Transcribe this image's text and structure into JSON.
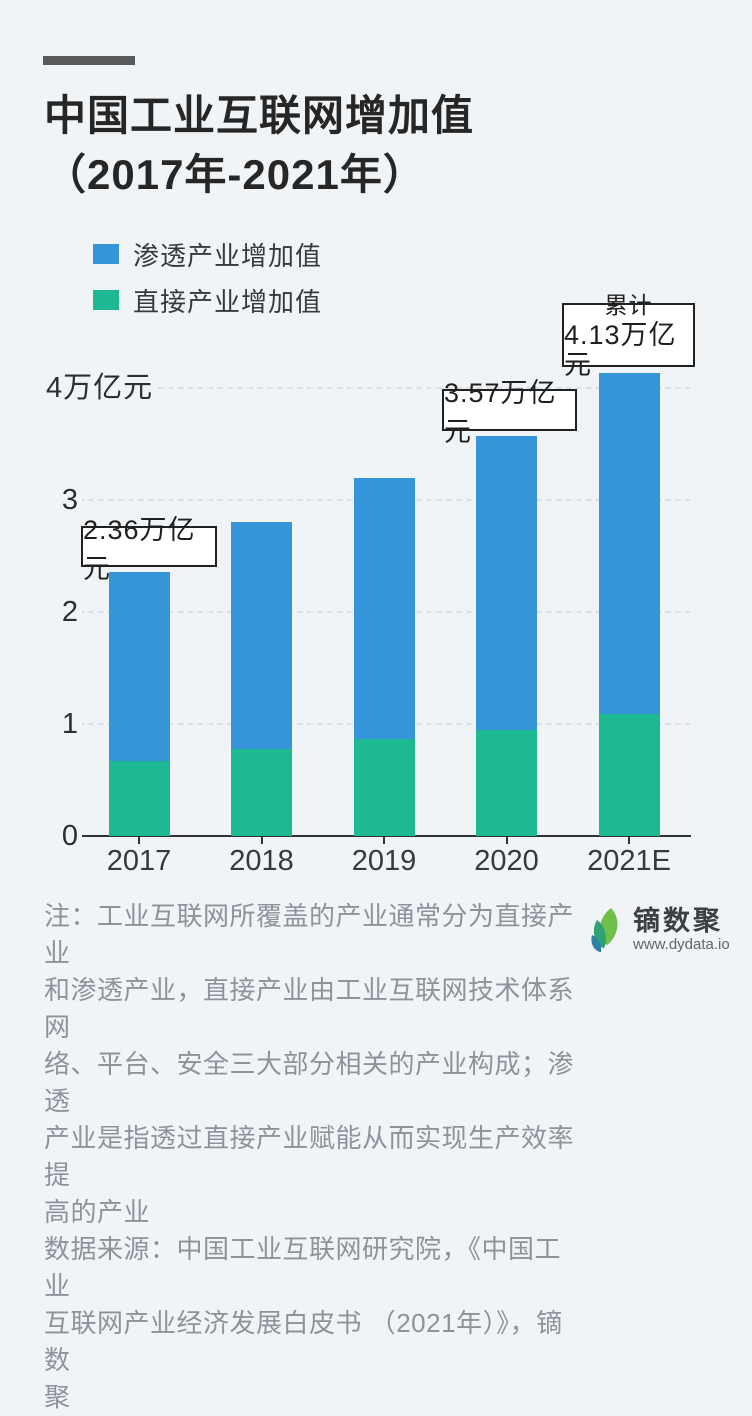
{
  "page": {
    "background": "#F1F4F7"
  },
  "header": {
    "accent_bar_color": "#58595B",
    "title": "中国工业互联网增加值\n（2017年-2021年）"
  },
  "legend": {
    "items": [
      {
        "label": "渗透产业增加值",
        "color": "#3595D8"
      },
      {
        "label": "直接产业增加值",
        "color": "#1CB992"
      }
    ]
  },
  "chart_data": {
    "type": "bar",
    "stacked": true,
    "title": "中国工业互联网增加值（2017年-2021年）",
    "categories": [
      "2017",
      "2018",
      "2019",
      "2020",
      "2021E"
    ],
    "series": [
      {
        "name": "直接产业增加值",
        "color": "#1CB992",
        "values": [
          0.67,
          0.78,
          0.87,
          0.95,
          1.09
        ]
      },
      {
        "name": "渗透产业增加值",
        "color": "#3595D8",
        "values": [
          1.69,
          2.02,
          2.33,
          2.62,
          3.04
        ]
      }
    ],
    "totals": [
      2.36,
      2.8,
      3.2,
      3.57,
      4.13
    ],
    "unit_label": "万亿元",
    "ylabel": "万亿元",
    "xlabel": "",
    "ylim": [
      0,
      4.4
    ],
    "grid": "dashed-horizontal",
    "legend_position": "top-left",
    "y_tick_values": [
      0,
      1,
      2,
      3,
      4
    ],
    "y_tick_labels": [
      "0",
      "1",
      "2",
      "3",
      "4万亿元"
    ],
    "annotations": [
      {
        "category": "2017",
        "line1": "",
        "line2": "2.36万亿元"
      },
      {
        "category": "2020",
        "line1": "",
        "line2": "3.57万亿元"
      },
      {
        "category": "2021E",
        "line1": "累计",
        "line2": "4.13万亿元"
      }
    ]
  },
  "footer": {
    "note": "注：工业互联网所覆盖的产业通常分为直接产业\n和渗透产业，直接产业由工业互联网技术体系网\n络、平台、安全三大部分相关的产业构成；渗透\n产业是指透过直接产业赋能从而实现生产效率提\n高的产业\n数据来源：中国工业互联网研究院，《中国工业\n互联网产业经济发展白皮书 （2021年）》，镝数\n聚",
    "logo": {
      "name": "镝数聚",
      "url": "www.dydata.io"
    }
  }
}
